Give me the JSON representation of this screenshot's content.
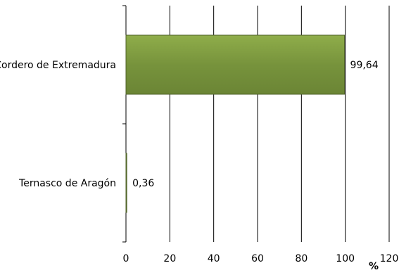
{
  "chart_data": {
    "type": "bar",
    "orientation": "horizontal",
    "categories": [
      "Cordero de Extremadura",
      "Ternasco de Aragón"
    ],
    "values": [
      99.64,
      0.36
    ],
    "value_labels": [
      "99,64",
      "0,36"
    ],
    "xlabel": "%",
    "ylabel": "",
    "title": "",
    "xlim": [
      0,
      120
    ],
    "xticks": [
      "0",
      "20",
      "40",
      "60",
      "80",
      "100",
      "120"
    ],
    "grid": "vertical",
    "legend": "none",
    "colors": {
      "bar_fill": "#77933c",
      "bar_stroke": "#4f6228",
      "grid": "#000000",
      "text": "#000000"
    }
  }
}
